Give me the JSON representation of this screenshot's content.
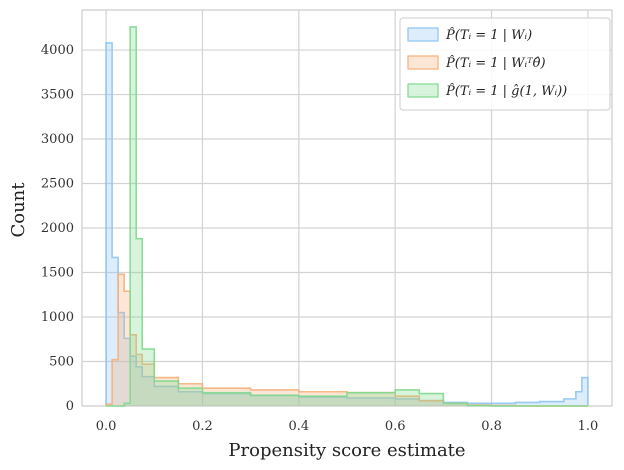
{
  "chart_data": {
    "type": "bar",
    "title": "",
    "xlabel": "Propensity score estimate",
    "ylabel": "Count",
    "xlim": [
      -0.05,
      1.05
    ],
    "ylim": [
      0,
      4450
    ],
    "xticks": [
      "0.0",
      "0.2",
      "0.4",
      "0.6",
      "0.8",
      "1.0"
    ],
    "yticks": [
      "0",
      "500",
      "1000",
      "1500",
      "2000",
      "2500",
      "3000",
      "3500",
      "4000"
    ],
    "grid": true,
    "legend_position": "top-right",
    "bin_width": 0.0125,
    "series": [
      {
        "name": "P̂(Tᵢ = 1 | Wᵢ)",
        "color": "#8ec4f5",
        "bins": [
          [
            0.0,
            4080
          ],
          [
            0.0125,
            1670
          ],
          [
            0.025,
            1050
          ],
          [
            0.0375,
            760
          ],
          [
            0.05,
            560
          ],
          [
            0.0625,
            440
          ],
          [
            0.075,
            330
          ],
          [
            0.1,
            220
          ],
          [
            0.15,
            160
          ],
          [
            0.2,
            140
          ],
          [
            0.3,
            120
          ],
          [
            0.4,
            100
          ],
          [
            0.5,
            90
          ],
          [
            0.6,
            80
          ],
          [
            0.65,
            60
          ],
          [
            0.7,
            40
          ],
          [
            0.75,
            30
          ],
          [
            0.8,
            30
          ],
          [
            0.85,
            40
          ],
          [
            0.9,
            50
          ],
          [
            0.95,
            80
          ],
          [
            0.975,
            160
          ],
          [
            0.9875,
            320
          ]
        ]
      },
      {
        "name": "P̂(Tᵢ = 1 | Wᵢᵀθ̂)",
        "color": "#f5b07a",
        "bins": [
          [
            0.0,
            20
          ],
          [
            0.0125,
            520
          ],
          [
            0.025,
            1480
          ],
          [
            0.0375,
            1290
          ],
          [
            0.05,
            800
          ],
          [
            0.0625,
            580
          ],
          [
            0.075,
            470
          ],
          [
            0.1,
            320
          ],
          [
            0.15,
            250
          ],
          [
            0.2,
            200
          ],
          [
            0.3,
            180
          ],
          [
            0.4,
            160
          ],
          [
            0.5,
            150
          ],
          [
            0.6,
            110
          ],
          [
            0.65,
            60
          ],
          [
            0.7,
            30
          ],
          [
            0.75,
            10
          ],
          [
            0.8,
            5
          ],
          [
            0.85,
            0
          ],
          [
            0.9,
            0
          ],
          [
            0.95,
            0
          ],
          [
            0.975,
            0
          ],
          [
            0.9875,
            0
          ]
        ]
      },
      {
        "name": "P̂(Tᵢ = 1 | ĝ(1, Wᵢ))",
        "color": "#7fd98f",
        "bins": [
          [
            0.0,
            0
          ],
          [
            0.0125,
            0
          ],
          [
            0.025,
            0
          ],
          [
            0.0375,
            30
          ],
          [
            0.05,
            4260
          ],
          [
            0.0625,
            1880
          ],
          [
            0.075,
            640
          ],
          [
            0.1,
            280
          ],
          [
            0.15,
            200
          ],
          [
            0.2,
            150
          ],
          [
            0.3,
            120
          ],
          [
            0.4,
            110
          ],
          [
            0.5,
            150
          ],
          [
            0.6,
            180
          ],
          [
            0.65,
            140
          ],
          [
            0.7,
            30
          ],
          [
            0.75,
            5
          ],
          [
            0.8,
            0
          ],
          [
            0.85,
            0
          ],
          [
            0.9,
            0
          ],
          [
            0.95,
            0
          ],
          [
            0.975,
            0
          ],
          [
            0.9875,
            0
          ]
        ]
      }
    ]
  }
}
